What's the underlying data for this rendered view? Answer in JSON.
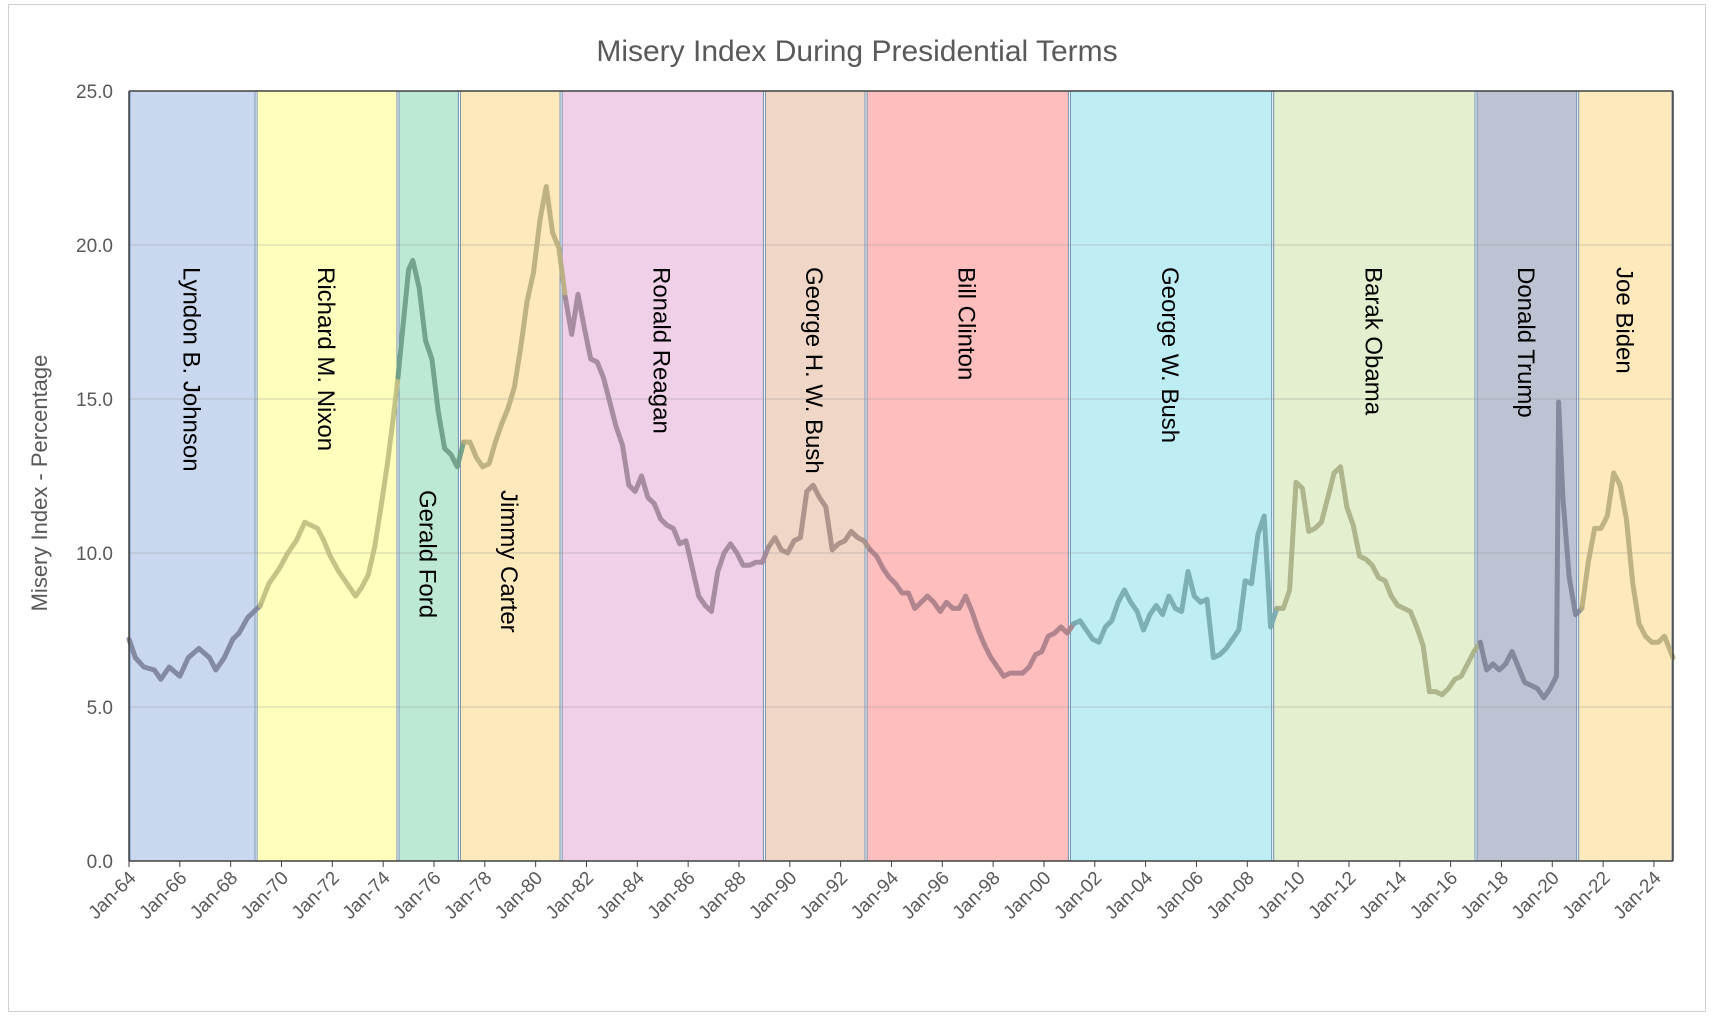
{
  "chart_data": {
    "type": "line",
    "title": "Misery Index During Presidential Terms",
    "xlabel": "",
    "ylabel": "Misery Index - Percentage",
    "ylim": [
      0,
      25
    ],
    "yticks": [
      "0.0",
      "5.0",
      "10.0",
      "15.0",
      "20.0",
      "25.0"
    ],
    "xlim": [
      "1964-01",
      "2024-10"
    ],
    "xticks": [
      "Jan-64",
      "Jan-66",
      "Jan-68",
      "Jan-70",
      "Jan-72",
      "Jan-74",
      "Jan-76",
      "Jan-78",
      "Jan-80",
      "Jan-82",
      "Jan-84",
      "Jan-86",
      "Jan-88",
      "Jan-90",
      "Jan-92",
      "Jan-94",
      "Jan-96",
      "Jan-98",
      "Jan-00",
      "Jan-02",
      "Jan-04",
      "Jan-06",
      "Jan-08",
      "Jan-10",
      "Jan-12",
      "Jan-14",
      "Jan-16",
      "Jan-18",
      "Jan-20",
      "Jan-22",
      "Jan-24"
    ],
    "grid": true,
    "terms": [
      {
        "name": "Lyndon B. Johnson",
        "start": "1964-01",
        "end": "1969-01",
        "fill": "#cad8ef",
        "line": "#7c8298"
      },
      {
        "name": "Richard M. Nixon",
        "start": "1969-01",
        "end": "1974-08",
        "fill": "#ffffbd",
        "line": "#bebe80"
      },
      {
        "name": "Gerald Ford",
        "start": "1974-08",
        "end": "1977-01",
        "fill": "#bde9d4",
        "line": "#6b9c85"
      },
      {
        "name": "Jimmy Carter",
        "start": "1977-01",
        "end": "1981-01",
        "fill": "#fde9bc",
        "line": "#b9ad7c"
      },
      {
        "name": "Ronald Reagan",
        "start": "1981-01",
        "end": "1989-01",
        "fill": "#efd0e8",
        "line": "#a08598"
      },
      {
        "name": "George H. W. Bush",
        "start": "1989-01",
        "end": "1993-01",
        "fill": "#efd6c6",
        "line": "#a58e87"
      },
      {
        "name": "Bill Clinton",
        "start": "1993-01",
        "end": "2001-01",
        "fill": "#ffbebe",
        "line": "#a87e88"
      },
      {
        "name": "George W. Bush",
        "start": "2001-01",
        "end": "2009-01",
        "fill": "#bfedf4",
        "line": "#76a9ae"
      },
      {
        "name": "Barak Obama",
        "start": "2009-01",
        "end": "2017-01",
        "fill": "#e4efcf",
        "line": "#a8ae84"
      },
      {
        "name": "Donald Trump",
        "start": "2017-01",
        "end": "2021-01",
        "fill": "#bdc3d3",
        "line": "#7d8397"
      },
      {
        "name": "Joe Biden",
        "start": "2021-01",
        "end": "2024-10",
        "fill": "#fde9bc",
        "line": "#b9ad7c"
      }
    ],
    "series": [
      {
        "points": [
          [
            "1964-01",
            7.2
          ],
          [
            "1964-04",
            6.6
          ],
          [
            "1964-08",
            6.3
          ],
          [
            "1965-01",
            6.2
          ],
          [
            "1965-04",
            5.9
          ],
          [
            "1965-08",
            6.3
          ],
          [
            "1966-01",
            6.0
          ],
          [
            "1966-05",
            6.6
          ],
          [
            "1966-10",
            6.9
          ],
          [
            "1967-03",
            6.6
          ],
          [
            "1967-06",
            6.2
          ],
          [
            "1967-10",
            6.6
          ],
          [
            "1968-02",
            7.2
          ],
          [
            "1968-05",
            7.4
          ],
          [
            "1968-09",
            7.9
          ],
          [
            "1968-12",
            8.1
          ],
          [
            "1969-03",
            8.3
          ],
          [
            "1969-07",
            9.0
          ],
          [
            "1969-12",
            9.5
          ],
          [
            "1970-04",
            10.0
          ],
          [
            "1970-08",
            10.4
          ],
          [
            "1970-12",
            11.0
          ],
          [
            "1971-03",
            10.9
          ],
          [
            "1971-06",
            10.8
          ],
          [
            "1971-09",
            10.4
          ],
          [
            "1971-12",
            9.9
          ],
          [
            "1972-04",
            9.4
          ],
          [
            "1972-08",
            9.0
          ],
          [
            "1972-12",
            8.6
          ],
          [
            "1973-03",
            8.9
          ],
          [
            "1973-06",
            9.3
          ],
          [
            "1973-09",
            10.2
          ],
          [
            "1973-12",
            11.5
          ],
          [
            "1974-03",
            12.9
          ],
          [
            "1974-06",
            14.5
          ],
          [
            "1974-08",
            15.7
          ],
          [
            "1974-10",
            17.1
          ],
          [
            "1975-01",
            19.2
          ],
          [
            "1975-03",
            19.5
          ],
          [
            "1975-06",
            18.6
          ],
          [
            "1975-09",
            16.9
          ],
          [
            "1975-12",
            16.3
          ],
          [
            "1976-03",
            14.6
          ],
          [
            "1976-06",
            13.4
          ],
          [
            "1976-09",
            13.2
          ],
          [
            "1976-12",
            12.8
          ],
          [
            "1977-03",
            13.6
          ],
          [
            "1977-06",
            13.6
          ],
          [
            "1977-09",
            13.1
          ],
          [
            "1977-12",
            12.8
          ],
          [
            "1978-03",
            12.9
          ],
          [
            "1978-06",
            13.6
          ],
          [
            "1978-09",
            14.2
          ],
          [
            "1978-12",
            14.7
          ],
          [
            "1979-03",
            15.4
          ],
          [
            "1979-06",
            16.7
          ],
          [
            "1979-09",
            18.2
          ],
          [
            "1979-12",
            19.1
          ],
          [
            "1980-03",
            20.8
          ],
          [
            "1980-06",
            21.9
          ],
          [
            "1980-09",
            20.4
          ],
          [
            "1980-12",
            19.9
          ],
          [
            "1981-03",
            18.3
          ],
          [
            "1981-06",
            17.1
          ],
          [
            "1981-09",
            18.4
          ],
          [
            "1981-12",
            17.3
          ],
          [
            "1982-03",
            16.3
          ],
          [
            "1982-06",
            16.2
          ],
          [
            "1982-09",
            15.7
          ],
          [
            "1982-12",
            14.9
          ],
          [
            "1983-03",
            14.1
          ],
          [
            "1983-06",
            13.5
          ],
          [
            "1983-09",
            12.2
          ],
          [
            "1983-12",
            12.0
          ],
          [
            "1984-03",
            12.5
          ],
          [
            "1984-06",
            11.8
          ],
          [
            "1984-09",
            11.6
          ],
          [
            "1984-12",
            11.1
          ],
          [
            "1985-03",
            10.9
          ],
          [
            "1985-06",
            10.8
          ],
          [
            "1985-09",
            10.3
          ],
          [
            "1985-12",
            10.4
          ],
          [
            "1986-03",
            9.5
          ],
          [
            "1986-06",
            8.6
          ],
          [
            "1986-09",
            8.3
          ],
          [
            "1986-12",
            8.1
          ],
          [
            "1987-03",
            9.4
          ],
          [
            "1987-06",
            10.0
          ],
          [
            "1987-09",
            10.3
          ],
          [
            "1987-12",
            10.0
          ],
          [
            "1988-03",
            9.6
          ],
          [
            "1988-06",
            9.6
          ],
          [
            "1988-09",
            9.7
          ],
          [
            "1988-12",
            9.7
          ],
          [
            "1989-03",
            10.2
          ],
          [
            "1989-06",
            10.5
          ],
          [
            "1989-09",
            10.1
          ],
          [
            "1989-12",
            10.0
          ],
          [
            "1990-03",
            10.4
          ],
          [
            "1990-06",
            10.5
          ],
          [
            "1990-09",
            12.0
          ],
          [
            "1990-12",
            12.2
          ],
          [
            "1991-03",
            11.8
          ],
          [
            "1991-06",
            11.5
          ],
          [
            "1991-09",
            10.1
          ],
          [
            "1991-12",
            10.3
          ],
          [
            "1992-03",
            10.4
          ],
          [
            "1992-06",
            10.7
          ],
          [
            "1992-09",
            10.5
          ],
          [
            "1992-12",
            10.4
          ],
          [
            "1993-03",
            10.1
          ],
          [
            "1993-06",
            9.9
          ],
          [
            "1993-09",
            9.5
          ],
          [
            "1993-12",
            9.2
          ],
          [
            "1994-03",
            9.0
          ],
          [
            "1994-06",
            8.7
          ],
          [
            "1994-09",
            8.7
          ],
          [
            "1994-12",
            8.2
          ],
          [
            "1995-03",
            8.4
          ],
          [
            "1995-06",
            8.6
          ],
          [
            "1995-09",
            8.4
          ],
          [
            "1995-12",
            8.1
          ],
          [
            "1996-03",
            8.4
          ],
          [
            "1996-06",
            8.2
          ],
          [
            "1996-09",
            8.2
          ],
          [
            "1996-12",
            8.6
          ],
          [
            "1997-03",
            8.1
          ],
          [
            "1997-06",
            7.5
          ],
          [
            "1997-09",
            7.0
          ],
          [
            "1997-12",
            6.6
          ],
          [
            "1998-03",
            6.3
          ],
          [
            "1998-06",
            6.0
          ],
          [
            "1998-09",
            6.1
          ],
          [
            "1998-12",
            6.1
          ],
          [
            "1999-03",
            6.1
          ],
          [
            "1999-06",
            6.3
          ],
          [
            "1999-09",
            6.7
          ],
          [
            "1999-12",
            6.8
          ],
          [
            "2000-03",
            7.3
          ],
          [
            "2000-06",
            7.4
          ],
          [
            "2000-09",
            7.6
          ],
          [
            "2000-12",
            7.4
          ],
          [
            "2001-03",
            7.7
          ],
          [
            "2001-06",
            7.8
          ],
          [
            "2001-09",
            7.5
          ],
          [
            "2001-12",
            7.2
          ],
          [
            "2002-03",
            7.1
          ],
          [
            "2002-06",
            7.6
          ],
          [
            "2002-09",
            7.8
          ],
          [
            "2002-12",
            8.4
          ],
          [
            "2003-03",
            8.8
          ],
          [
            "2003-06",
            8.4
          ],
          [
            "2003-09",
            8.1
          ],
          [
            "2003-12",
            7.5
          ],
          [
            "2004-03",
            8.0
          ],
          [
            "2004-06",
            8.3
          ],
          [
            "2004-09",
            8.0
          ],
          [
            "2004-12",
            8.6
          ],
          [
            "2005-03",
            8.2
          ],
          [
            "2005-06",
            8.1
          ],
          [
            "2005-09",
            9.4
          ],
          [
            "2005-12",
            8.6
          ],
          [
            "2006-03",
            8.4
          ],
          [
            "2006-06",
            8.5
          ],
          [
            "2006-09",
            6.6
          ],
          [
            "2006-12",
            6.7
          ],
          [
            "2007-03",
            6.9
          ],
          [
            "2007-06",
            7.2
          ],
          [
            "2007-09",
            7.5
          ],
          [
            "2007-12",
            9.1
          ],
          [
            "2008-03",
            9.0
          ],
          [
            "2008-06",
            10.6
          ],
          [
            "2008-09",
            11.2
          ],
          [
            "2008-12",
            7.6
          ],
          [
            "2009-03",
            8.2
          ],
          [
            "2009-06",
            8.2
          ],
          [
            "2009-09",
            8.8
          ],
          [
            "2009-12",
            12.3
          ],
          [
            "2010-03",
            12.1
          ],
          [
            "2010-06",
            10.7
          ],
          [
            "2010-09",
            10.8
          ],
          [
            "2010-12",
            11.0
          ],
          [
            "2011-03",
            11.8
          ],
          [
            "2011-06",
            12.6
          ],
          [
            "2011-09",
            12.8
          ],
          [
            "2011-12",
            11.5
          ],
          [
            "2012-03",
            10.9
          ],
          [
            "2012-06",
            9.9
          ],
          [
            "2012-09",
            9.8
          ],
          [
            "2012-12",
            9.6
          ],
          [
            "2013-03",
            9.2
          ],
          [
            "2013-06",
            9.1
          ],
          [
            "2013-09",
            8.6
          ],
          [
            "2013-12",
            8.3
          ],
          [
            "2014-03",
            8.2
          ],
          [
            "2014-06",
            8.1
          ],
          [
            "2014-09",
            7.6
          ],
          [
            "2014-12",
            7.0
          ],
          [
            "2015-03",
            5.5
          ],
          [
            "2015-06",
            5.5
          ],
          [
            "2015-09",
            5.4
          ],
          [
            "2015-12",
            5.6
          ],
          [
            "2016-03",
            5.9
          ],
          [
            "2016-06",
            6.0
          ],
          [
            "2016-09",
            6.4
          ],
          [
            "2016-12",
            6.8
          ],
          [
            "2017-03",
            7.1
          ],
          [
            "2017-06",
            6.2
          ],
          [
            "2017-09",
            6.4
          ],
          [
            "2017-12",
            6.2
          ],
          [
            "2018-03",
            6.4
          ],
          [
            "2018-06",
            6.8
          ],
          [
            "2018-09",
            6.3
          ],
          [
            "2018-12",
            5.8
          ],
          [
            "2019-03",
            5.7
          ],
          [
            "2019-06",
            5.6
          ],
          [
            "2019-09",
            5.3
          ],
          [
            "2019-12",
            5.6
          ],
          [
            "2020-03",
            6.0
          ],
          [
            "2020-04",
            14.9
          ],
          [
            "2020-05",
            13.4
          ],
          [
            "2020-06",
            11.8
          ],
          [
            "2020-09",
            9.2
          ],
          [
            "2020-12",
            8.0
          ],
          [
            "2021-03",
            8.2
          ],
          [
            "2021-06",
            9.7
          ],
          [
            "2021-09",
            10.8
          ],
          [
            "2021-12",
            10.8
          ],
          [
            "2022-03",
            11.2
          ],
          [
            "2022-06",
            12.6
          ],
          [
            "2022-09",
            12.2
          ],
          [
            "2022-12",
            11.1
          ],
          [
            "2023-03",
            9.0
          ],
          [
            "2023-06",
            7.7
          ],
          [
            "2023-09",
            7.3
          ],
          [
            "2023-12",
            7.1
          ],
          [
            "2024-03",
            7.1
          ],
          [
            "2024-06",
            7.3
          ],
          [
            "2024-10",
            6.6
          ]
        ]
      }
    ]
  }
}
